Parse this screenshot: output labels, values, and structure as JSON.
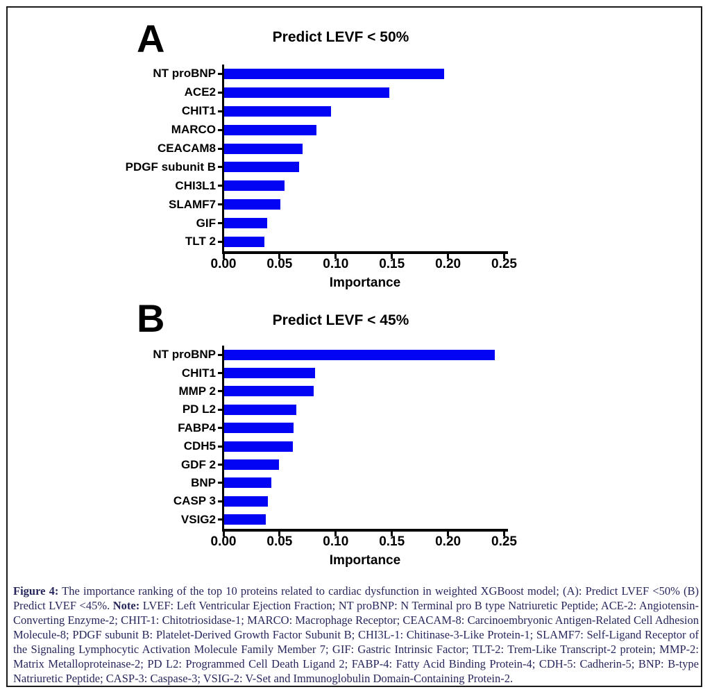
{
  "colors": {
    "bar": "#0404f5",
    "axis": "#000000",
    "caption_text": "#26265c",
    "border": "#1a1a1a"
  },
  "chart_data": [
    {
      "type": "bar",
      "orientation": "horizontal",
      "panel_label": "A",
      "title": "Predict LEVF < 50%",
      "categories": [
        "NT proBNP",
        "ACE2",
        "CHIT1",
        "MARCO",
        "CEACAM8",
        "PDGF subunit B",
        "CHI3L1",
        "SLAMF7",
        "GIF",
        "TLT 2"
      ],
      "values": [
        0.196,
        0.147,
        0.095,
        0.082,
        0.07,
        0.067,
        0.054,
        0.05,
        0.038,
        0.036
      ],
      "xlabel": "Importance",
      "xlim": [
        0,
        0.25
      ],
      "xticks": [
        0.0,
        0.05,
        0.1,
        0.15,
        0.2,
        0.25
      ],
      "xtick_labels": [
        "0.00",
        "0.05",
        "0.10",
        "0.15",
        "0.20",
        "0.25"
      ],
      "grid": false,
      "legend": false
    },
    {
      "type": "bar",
      "orientation": "horizontal",
      "panel_label": "B",
      "title": "Predict LEVF < 45%",
      "categories": [
        "NT proBNP",
        "CHIT1",
        "MMP 2",
        "PD L2",
        "FABP4",
        "CDH5",
        "GDF 2",
        "BNP",
        "CASP 3",
        "VSIG2"
      ],
      "values": [
        0.241,
        0.081,
        0.08,
        0.064,
        0.062,
        0.061,
        0.049,
        0.042,
        0.039,
        0.037
      ],
      "xlabel": "Importance",
      "xlim": [
        0,
        0.25
      ],
      "xticks": [
        0.0,
        0.05,
        0.1,
        0.15,
        0.2,
        0.25
      ],
      "xtick_labels": [
        "0.00",
        "0.05",
        "0.10",
        "0.15",
        "0.20",
        "0.25"
      ],
      "grid": false,
      "legend": false
    }
  ],
  "caption": {
    "label": "Figure 4:",
    "text": " The importance ranking of the top 10 proteins related to cardiac dysfunction in weighted XGBoost model; (A): Predict LVEF <50% (B) Predict LVEF <45%. ",
    "note_label": "Note:",
    "note_text": " LVEF: Left Ventricular Ejection Fraction; NT proBNP: N Terminal pro B type Natriuretic Peptide; ACE-2: Angiotensin-Converting Enzyme-2; CHIT-1: Chitotriosidase-1; MARCO: Macrophage Receptor; CEACAM-8: Carcinoembryonic Antigen-Related Cell Adhesion Molecule-8; PDGF subunit B: Platelet-Derived Growth Factor Subunit B; CHI3L-1: Chitinase-3-Like Protein-1; SLAMF7: Self-Ligand Receptor of the Signaling Lymphocytic Activation Molecule Family Member 7; GIF: Gastric Intrinsic Factor; TLT-2: Trem-Like Transcript-2 protein; MMP-2: Matrix Metalloproteinase-2; PD L2: Programmed Cell Death Ligand 2; FABP-4: Fatty Acid Binding Protein-4; CDH-5: Cadherin-5; BNP: B-type Natriuretic Peptide; CASP-3: Caspase-3; VSIG-2: V-Set and Immunoglobulin Domain-Containing Protein-2."
  }
}
